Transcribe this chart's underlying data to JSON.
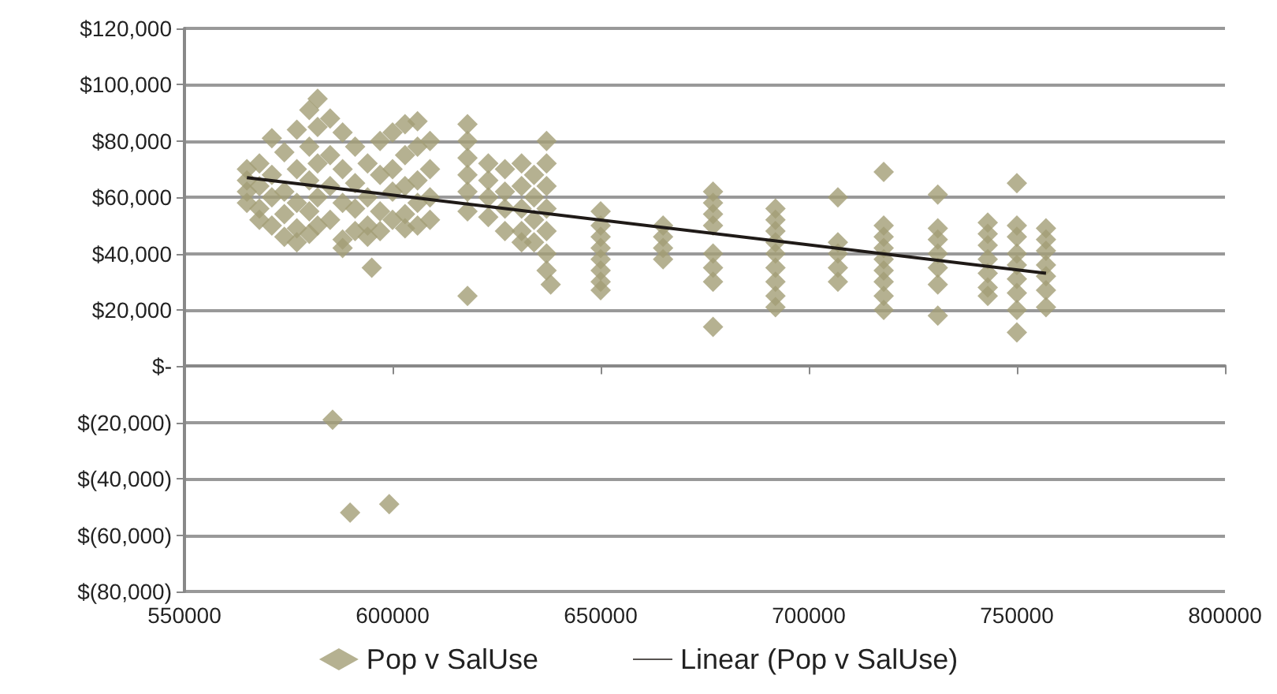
{
  "chart_data": {
    "type": "scatter",
    "xlim": [
      550000,
      800000
    ],
    "xticks": [
      550000,
      600000,
      650000,
      700000,
      750000,
      800000
    ],
    "ylim": [
      -80000,
      120000
    ],
    "yticks": [
      {
        "value": -80000,
        "label": "$(80,000)"
      },
      {
        "value": -60000,
        "label": "$(60,000)"
      },
      {
        "value": -40000,
        "label": "$(40,000)"
      },
      {
        "value": -20000,
        "label": "$(20,000)"
      },
      {
        "value": 0,
        "label": "$-"
      },
      {
        "value": 20000,
        "label": "$20,000"
      },
      {
        "value": 40000,
        "label": "$40,000"
      },
      {
        "value": 60000,
        "label": "$60,000"
      },
      {
        "value": 80000,
        "label": "$80,000"
      },
      {
        "value": 100000,
        "label": "$100,000"
      },
      {
        "value": 120000,
        "label": "$120,000"
      }
    ],
    "grid": "y",
    "legend": "bottom",
    "series": [
      {
        "name": "Pop v SalUse",
        "marker": "diamond",
        "color": "#a39e76",
        "x": [
          565000,
          565000,
          565000,
          565000,
          568000,
          568000,
          568000,
          568000,
          571000,
          571000,
          571000,
          571000,
          574000,
          574000,
          574000,
          574000,
          577000,
          577000,
          577000,
          577000,
          577000,
          580000,
          580000,
          580000,
          580000,
          580000,
          582000,
          582000,
          582000,
          582000,
          582000,
          585000,
          585000,
          585000,
          585000,
          588000,
          588000,
          588000,
          588000,
          588000,
          591000,
          591000,
          591000,
          591000,
          594000,
          594000,
          594000,
          594000,
          595000,
          597000,
          597000,
          597000,
          597000,
          600000,
          600000,
          600000,
          600000,
          603000,
          603000,
          603000,
          603000,
          603000,
          606000,
          606000,
          606000,
          606000,
          606000,
          609000,
          609000,
          609000,
          609000,
          618000,
          618000,
          618000,
          618000,
          618000,
          618000,
          618000,
          623000,
          623000,
          623000,
          623000,
          627000,
          627000,
          627000,
          627000,
          631000,
          631000,
          631000,
          631000,
          631000,
          634000,
          634000,
          634000,
          634000,
          637000,
          637000,
          637000,
          637000,
          637000,
          637000,
          637000,
          638000,
          585600,
          589800,
          599200,
          650000,
          650000,
          650000,
          650000,
          650000,
          650000,
          650000,
          650000,
          665000,
          665000,
          665000,
          665000,
          677000,
          677000,
          677000,
          677000,
          677000,
          677000,
          677000,
          677000,
          692000,
          692000,
          692000,
          692000,
          692000,
          692000,
          692000,
          692000,
          692000,
          707000,
          707000,
          707000,
          707000,
          707000,
          718000,
          718000,
          718000,
          718000,
          718000,
          718000,
          718000,
          718000,
          718000,
          731000,
          731000,
          731000,
          731000,
          731000,
          731000,
          731000,
          743000,
          743000,
          743000,
          743000,
          743000,
          743000,
          743000,
          750000,
          750000,
          750000,
          750000,
          750000,
          750000,
          750000,
          750000,
          750000,
          757000,
          757000,
          757000,
          757000,
          757000,
          757000,
          757000
        ],
        "values": [
          70000,
          66000,
          62000,
          58000,
          72000,
          64000,
          56000,
          52000,
          81000,
          68000,
          60000,
          50000,
          76000,
          62000,
          54000,
          46000,
          84000,
          70000,
          58000,
          49000,
          44000,
          91000,
          78000,
          66000,
          55000,
          47000,
          95000,
          85000,
          72000,
          60000,
          50000,
          88000,
          75000,
          64000,
          52000,
          83000,
          70000,
          58000,
          45000,
          42000,
          78000,
          65000,
          56000,
          48000,
          72000,
          60000,
          50000,
          46000,
          35000,
          80000,
          68000,
          55000,
          48000,
          83000,
          70000,
          62000,
          52000,
          86000,
          75000,
          64000,
          54000,
          49000,
          87000,
          78000,
          66000,
          58000,
          50000,
          80000,
          70000,
          60000,
          52000,
          86000,
          80000,
          74000,
          68000,
          62000,
          55000,
          25000,
          72000,
          66000,
          60000,
          53000,
          70000,
          62000,
          56000,
          48000,
          72000,
          64000,
          56000,
          48000,
          44000,
          68000,
          60000,
          52000,
          44000,
          80000,
          72000,
          64000,
          56000,
          48000,
          40000,
          34000,
          29000,
          -19000,
          -52000,
          -49000,
          55000,
          50000,
          46000,
          42000,
          38000,
          34000,
          30000,
          27000,
          50000,
          46000,
          42000,
          38000,
          62000,
          58000,
          54000,
          50000,
          40000,
          35000,
          30000,
          14000,
          56000,
          52000,
          48000,
          44000,
          40000,
          35000,
          30000,
          25000,
          21000,
          60000,
          44000,
          40000,
          35000,
          30000,
          69000,
          50000,
          46000,
          42000,
          38000,
          34000,
          30000,
          25000,
          20000,
          61000,
          49000,
          45000,
          40000,
          35000,
          29000,
          18000,
          51000,
          47000,
          43000,
          38000,
          33000,
          28000,
          25000,
          65000,
          50000,
          46000,
          40000,
          36000,
          31000,
          26000,
          20000,
          12000,
          49000,
          45000,
          41000,
          36000,
          32000,
          27000,
          21000
        ]
      },
      {
        "name": "Linear (Pop v SalUse)",
        "type": "line",
        "marker": "none",
        "color": "#1f1a17",
        "x": [
          565000,
          757000
        ],
        "values": [
          67000,
          33000
        ]
      }
    ]
  }
}
